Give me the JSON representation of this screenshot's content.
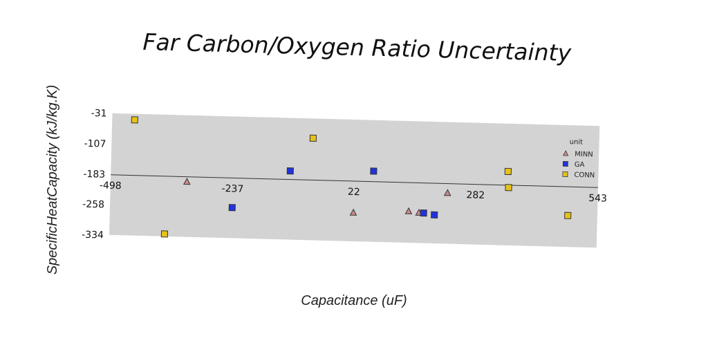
{
  "chart_data": {
    "type": "scatter",
    "title": "Far Carbon/Oxygen Ratio Uncertainty",
    "xlabel": "Capacitance (uF)",
    "ylabel": "SpecificHeatCapacity (kJ/kg.K)",
    "xlim": [
      -498,
      543
    ],
    "ylim": [
      -334,
      -31
    ],
    "x_ticks": [
      "-498",
      "-237",
      "22",
      "282",
      "543"
    ],
    "y_ticks": [
      "-31",
      "-107",
      "-183",
      "-258",
      "-334"
    ],
    "legend_title": "unit",
    "legend_position": "top-right",
    "grid": false,
    "series": [
      {
        "name": "MINN",
        "marker": "triangle",
        "color": "#c98a8a",
        "points": [
          {
            "x": -335,
            "y": -197
          },
          {
            "x": 22,
            "y": -263
          },
          {
            "x": 140,
            "y": -256
          },
          {
            "x": 162,
            "y": -259
          },
          {
            "x": 222,
            "y": -208
          }
        ]
      },
      {
        "name": "GA",
        "marker": "square",
        "color": "#2233dd",
        "points": [
          {
            "x": -237,
            "y": -258
          },
          {
            "x": -115,
            "y": -163
          },
          {
            "x": 63,
            "y": -158
          },
          {
            "x": 172,
            "y": -259
          },
          {
            "x": 195,
            "y": -263
          }
        ]
      },
      {
        "name": "CONN",
        "marker": "square",
        "color": "#e6c21a",
        "points": [
          {
            "x": -450,
            "y": -46
          },
          {
            "x": -380,
            "y": -328
          },
          {
            "x": -68,
            "y": -80
          },
          {
            "x": 350,
            "y": -150
          },
          {
            "x": 352,
            "y": -190
          },
          {
            "x": 480,
            "y": -256
          }
        ]
      }
    ]
  }
}
